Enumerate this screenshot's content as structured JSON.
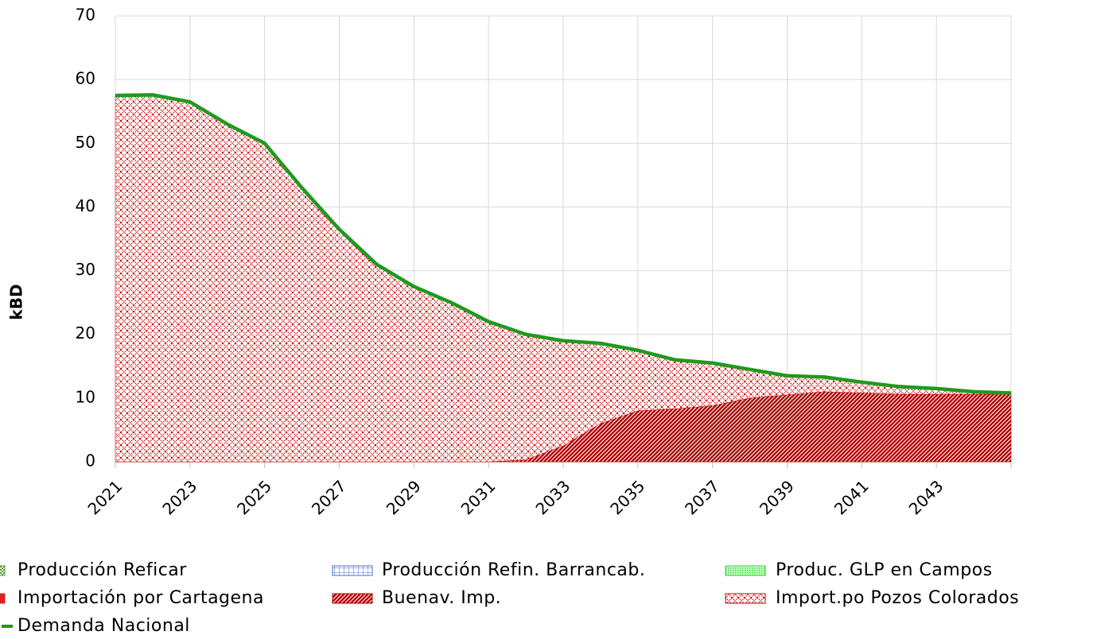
{
  "chart_data": {
    "type": "stacked-area",
    "y_label": "kBD",
    "categories": [
      "2021",
      null,
      "2023",
      null,
      "2025",
      null,
      "2027",
      null,
      "2029",
      null,
      "2031",
      null,
      "2033",
      null,
      "2035",
      null,
      "2037",
      null,
      "2039",
      null,
      "2041",
      null,
      "2043",
      null,
      null
    ],
    "ylim": [
      0,
      70
    ],
    "yticks": [
      0,
      10,
      20,
      30,
      40,
      50,
      60,
      70
    ],
    "grid": true,
    "series": [
      {
        "name": "Producción Reficar",
        "color": "#4e9a2c",
        "pattern": "checker",
        "values": [
          0,
          0,
          0,
          0,
          0,
          0,
          0,
          0,
          0,
          0,
          0,
          0,
          0,
          0,
          0,
          0,
          0,
          0,
          0,
          0,
          0,
          0,
          0,
          0,
          0
        ]
      },
      {
        "name": "Producción Refin. Barrancab.",
        "color": "#4472c4",
        "pattern": "grid",
        "values": [
          0,
          0,
          0,
          0,
          0,
          0,
          0,
          0,
          0,
          0,
          0,
          0,
          0,
          0,
          0,
          0,
          0,
          0,
          0,
          0,
          0,
          0,
          0,
          0,
          0
        ]
      },
      {
        "name": "Produc. GLP en Campos",
        "color": "#33cc33",
        "pattern": "dots",
        "values": [
          0,
          0,
          0,
          0,
          0,
          0,
          0,
          0,
          0,
          0,
          0,
          0,
          0,
          0,
          0,
          0,
          0,
          0,
          0,
          0,
          0,
          0,
          0,
          0,
          0
        ]
      },
      {
        "name": "Importación por Cartagena",
        "color": "#e02020",
        "pattern": "solid",
        "values": [
          0,
          0,
          0,
          0,
          0,
          0,
          0,
          0,
          0,
          0,
          0,
          0,
          0,
          0,
          0,
          0,
          0,
          0,
          0,
          0,
          0,
          0,
          0,
          0,
          0
        ]
      },
      {
        "name": "Buenav. Imp.",
        "color": "#b00000",
        "pattern": "diagonal",
        "values": [
          0,
          0,
          0,
          0,
          0,
          0,
          0,
          0,
          0,
          0,
          0,
          0.3,
          2.5,
          6,
          8,
          8.3,
          8.8,
          10,
          10.5,
          11,
          10.8,
          10.6,
          10.6,
          10.6,
          10.6
        ]
      },
      {
        "name": "Import.po Pozos Colorados",
        "color": "#cc0000",
        "pattern": "crosshatch",
        "values": [
          57.5,
          57.6,
          56.5,
          53,
          50,
          43,
          36.5,
          31,
          27.5,
          25,
          22,
          19.7,
          16.5,
          12.6,
          9.5,
          7.7,
          6.7,
          4.5,
          3,
          2.3,
          1.7,
          1.2,
          0.9,
          0.4,
          0.2
        ]
      },
      {
        "name": "Demanda Nacional",
        "color": "#1e9a1e",
        "kind": "line",
        "values": [
          57.5,
          57.6,
          56.5,
          53,
          50,
          43,
          36.5,
          31,
          27.5,
          25,
          22,
          20,
          19,
          18.6,
          17.5,
          16,
          15.5,
          14.5,
          13.5,
          13.3,
          12.5,
          11.8,
          11.5,
          11,
          10.8
        ]
      }
    ]
  }
}
